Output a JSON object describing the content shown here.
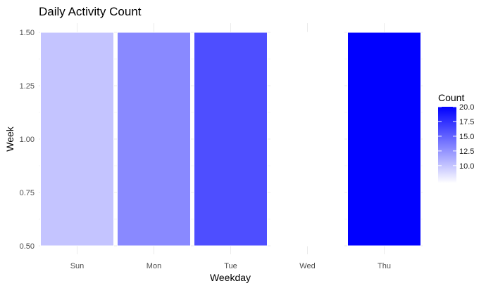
{
  "chart_data": {
    "type": "heatmap",
    "title": "Daily Activity Count",
    "xlabel": "Weekday",
    "ylabel": "Week",
    "categories": [
      "Sun",
      "Mon",
      "Tue",
      "Wed",
      "Thu"
    ],
    "y_ticks": [
      "0.50",
      "0.75",
      "1.00",
      "1.25",
      "1.50"
    ],
    "ylim": [
      0.5,
      1.5
    ],
    "cells": [
      {
        "x": "Sun",
        "week": 1,
        "count": 10
      },
      {
        "x": "Mon",
        "week": 1,
        "count": 13
      },
      {
        "x": "Tue",
        "week": 1,
        "count": 16
      },
      {
        "x": "Wed",
        "week": 1,
        "count": 7
      },
      {
        "x": "Thu",
        "week": 1,
        "count": 20
      }
    ],
    "legend": {
      "title": "Count",
      "labels": [
        "20.0",
        "17.5",
        "15.0",
        "12.5",
        "10.0"
      ],
      "ticks": [
        20.0,
        17.5,
        15.0,
        12.5,
        10.0
      ],
      "range": [
        7,
        20
      ],
      "position": "right"
    },
    "colors": {
      "low": "#ffffff",
      "high": "#0000ff",
      "grid": "#ebebeb"
    },
    "grid": true
  }
}
